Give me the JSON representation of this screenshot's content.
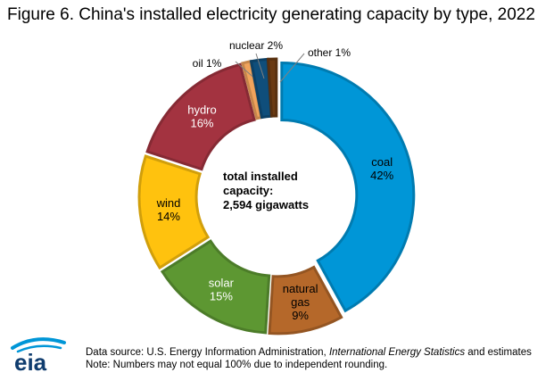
{
  "title": "Figure 6. China's installed electricity generating capacity by type, 2022",
  "center_label": {
    "line1": "total installed",
    "line2": "capacity:",
    "line3": "2,594 gigawatts"
  },
  "footer": {
    "source_prefix": "Data source: U.S. Energy Information Administration, ",
    "source_italic": "International Energy Statistics",
    "source_suffix": " and estimates",
    "note": "Note: Numbers may not equal 100% due to independent rounding."
  },
  "logo_text": "eia",
  "chart_data": {
    "type": "pie",
    "donut": true,
    "title": "Figure 6. China's installed electricity generating capacity by type, 2022",
    "total_label": "2,594 gigawatts",
    "slices": [
      {
        "label": "coal",
        "value": 42,
        "pct_text": "42%",
        "color": "#0096D7"
      },
      {
        "label": "natural gas",
        "value": 9,
        "pct_text": "9%",
        "color": "#B5682A"
      },
      {
        "label": "solar",
        "value": 15,
        "pct_text": "15%",
        "color": "#5D9732"
      },
      {
        "label": "wind",
        "value": 14,
        "pct_text": "14%",
        "color": "#FFC20E"
      },
      {
        "label": "hydro",
        "value": 16,
        "pct_text": "16%",
        "color": "#A33340"
      },
      {
        "label": "oil",
        "value": 1,
        "pct_text": "1%",
        "color": "#F0A35C"
      },
      {
        "label": "nuclear",
        "value": 2,
        "pct_text": "2%",
        "color": "#0F4E7B"
      },
      {
        "label": "other",
        "value": 1,
        "pct_text": "1%",
        "color": "#6B3A12"
      }
    ]
  }
}
